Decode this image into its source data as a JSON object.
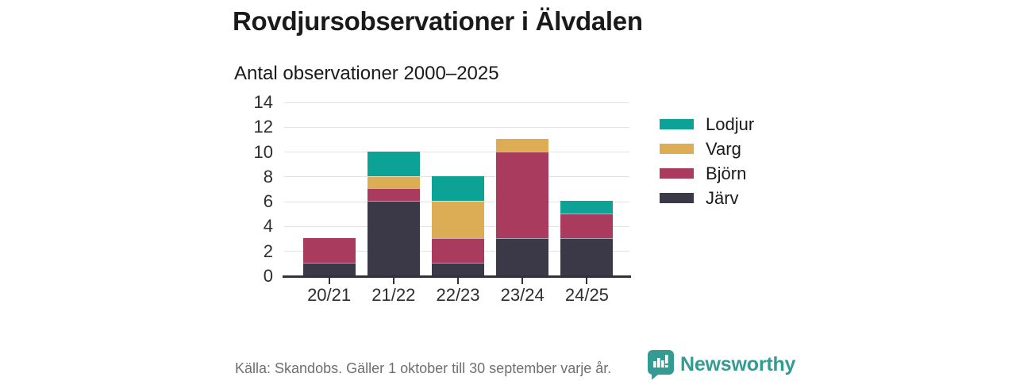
{
  "header": {
    "title": "Rovdjursobservationer i Älvdalen",
    "subtitle": "Antal observationer 2000–2025"
  },
  "footer": {
    "source": "Källa: Skandobs. Gäller 1 oktober till 30 september varje år.",
    "brand": "Newsworthy"
  },
  "colors": {
    "lodjur": "#0ca295",
    "varg": "#dcad55",
    "bjorn": "#a93b5e",
    "jarv": "#3b3847",
    "brand_teal": "#349b93",
    "gridline": "#e3e3e3",
    "axis": "#34313f"
  },
  "chart_data": {
    "type": "bar",
    "stacked": true,
    "title": "Rovdjursobservationer i Älvdalen",
    "subtitle": "Antal observationer 2000–2025",
    "categories": [
      "20/21",
      "21/22",
      "22/23",
      "23/24",
      "24/25"
    ],
    "series": [
      {
        "name": "Lodjur",
        "slug": "lodjur",
        "color": "#0ca295",
        "values": [
          0,
          2,
          2,
          0,
          1
        ]
      },
      {
        "name": "Varg",
        "slug": "varg",
        "color": "#dcad55",
        "values": [
          0,
          1,
          3,
          1,
          0
        ]
      },
      {
        "name": "Björn",
        "slug": "bjorn",
        "color": "#a93b5e",
        "values": [
          2,
          1,
          2,
          7,
          2
        ]
      },
      {
        "name": "Järv",
        "slug": "jarv",
        "color": "#3b3847",
        "values": [
          1,
          6,
          1,
          3,
          3
        ]
      }
    ],
    "stack_order_bottom_to_top": [
      "Järv",
      "Björn",
      "Varg",
      "Lodjur"
    ],
    "totals": [
      3,
      10,
      8,
      11,
      6
    ],
    "xlabel": "",
    "ylabel": "",
    "ylim": [
      0,
      14
    ],
    "yticks": [
      0,
      2,
      4,
      6,
      8,
      10,
      12,
      14
    ],
    "grid": true,
    "legend_position": "right"
  }
}
